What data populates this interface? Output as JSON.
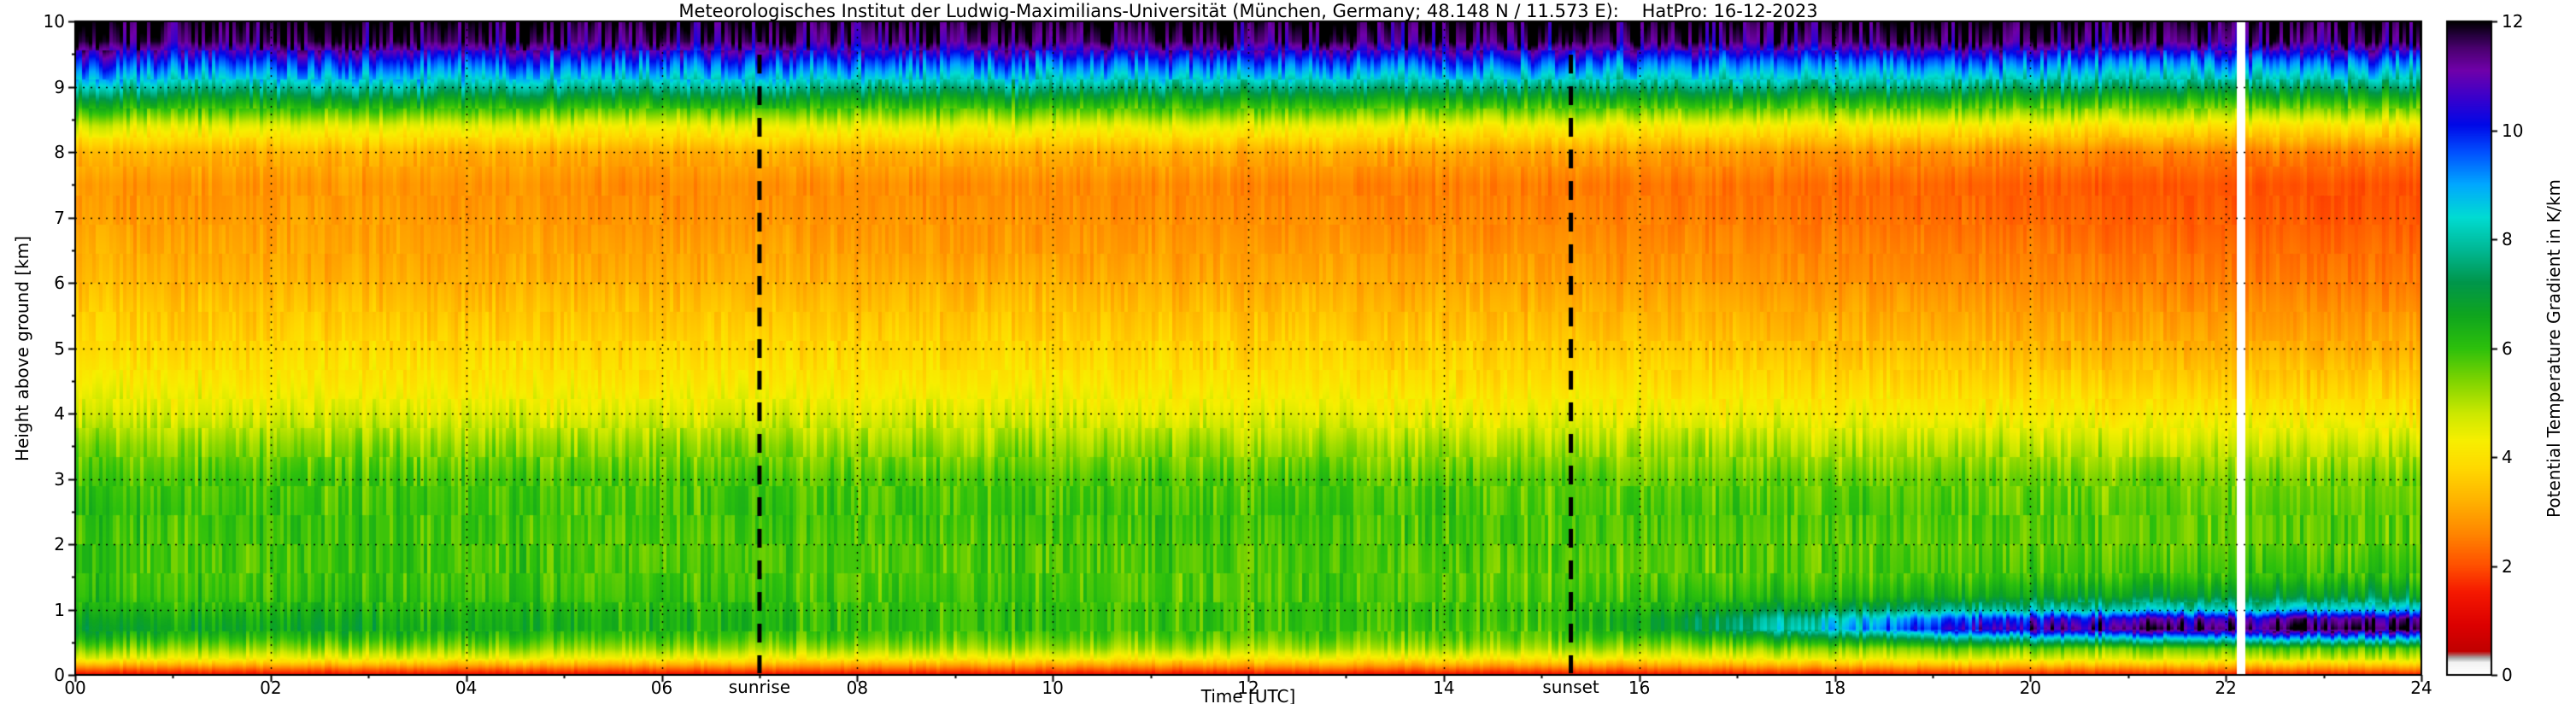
{
  "figure": {
    "title": "Meteorologisches Institut der Ludwig-Maximilians-Universität (München, Germany; 48.148 N / 11.573 E):    HatPro: 16-12-2023"
  },
  "axes": {
    "x_label": "Time [UTC]",
    "y_label": "Height above ground [km]",
    "x_tick_labels": [
      "00",
      "02",
      "04",
      "06",
      "08",
      "10",
      "12",
      "14",
      "16",
      "18",
      "20",
      "22",
      "24"
    ],
    "x_tick_values": [
      0,
      2,
      4,
      6,
      8,
      10,
      12,
      14,
      16,
      18,
      20,
      22,
      24
    ],
    "y_tick_labels": [
      "0",
      "1",
      "2",
      "3",
      "4",
      "5",
      "6",
      "7",
      "8",
      "9",
      "10"
    ],
    "y_tick_values": [
      0,
      1,
      2,
      3,
      4,
      5,
      6,
      7,
      8,
      9,
      10
    ],
    "x_range": [
      0,
      24
    ],
    "y_range": [
      0,
      10
    ],
    "grid": "dotted-black"
  },
  "colorbar": {
    "label": "Potential Temperature Gradient in K/km",
    "tick_labels": [
      "0",
      "2",
      "4",
      "6",
      "8",
      "10",
      "12"
    ],
    "tick_values": [
      0,
      2,
      4,
      6,
      8,
      10,
      12
    ],
    "range": [
      0,
      12
    ],
    "colormap": [
      [
        0.0,
        "#ffffff"
      ],
      [
        0.22,
        "#f2f2f2"
      ],
      [
        0.3,
        "#a6a6a6"
      ],
      [
        0.42,
        "#c00000"
      ],
      [
        0.9,
        "#dc0000"
      ],
      [
        1.5,
        "#f51800"
      ],
      [
        2.0,
        "#ff5000"
      ],
      [
        2.6,
        "#ff8700"
      ],
      [
        3.2,
        "#ffb300"
      ],
      [
        3.8,
        "#ffd900"
      ],
      [
        4.3,
        "#f7ef00"
      ],
      [
        4.8,
        "#cbe800"
      ],
      [
        5.4,
        "#7ed400"
      ],
      [
        6.0,
        "#2cc00c"
      ],
      [
        6.6,
        "#0fa51e"
      ],
      [
        7.2,
        "#00964b"
      ],
      [
        7.8,
        "#00b894"
      ],
      [
        8.4,
        "#00dcd2"
      ],
      [
        9.0,
        "#00a8ff"
      ],
      [
        9.6,
        "#004fff"
      ],
      [
        10.1,
        "#0008e8"
      ],
      [
        10.6,
        "#3a00cc"
      ],
      [
        11.1,
        "#7000aa"
      ],
      [
        11.5,
        "#4b0070"
      ],
      [
        11.75,
        "#24003c"
      ],
      [
        12.0,
        "#000000"
      ]
    ]
  },
  "annotations": {
    "sunrise_label": "sunrise",
    "sunrise_time_utc": 7.0,
    "sunset_label": "sunset",
    "sunset_time_utc": 15.3,
    "line_style": "black-dashed-vertical"
  },
  "chart_data": {
    "type": "heatmap",
    "title": "HatPro potential temperature gradient time-height section, 16-12-2023",
    "x_name": "Time [UTC]",
    "y_name": "Height above ground [km]",
    "value_name": "Potential Temperature Gradient in K/km",
    "x_range": [
      0,
      24
    ],
    "y_range": [
      0,
      10
    ],
    "value_range": [
      0,
      12
    ],
    "data_gap_time_utc": [
      22.12,
      22.2
    ],
    "y_heights_km": [
      0,
      0.08,
      0.15,
      0.25,
      0.4,
      0.55,
      0.7,
      0.85,
      1.0,
      1.2,
      1.5,
      2.0,
      2.5,
      3.0,
      3.5,
      4.0,
      4.5,
      5.0,
      5.5,
      6.0,
      6.5,
      7.0,
      7.5,
      8.0,
      8.4,
      8.8,
      9.1,
      9.4,
      9.7,
      10.0
    ],
    "x_profile_times": [
      0,
      3,
      6,
      7.5,
      9,
      12,
      15,
      16.5,
      18,
      19.5,
      21,
      23,
      24
    ],
    "profiles_K_per_km": [
      [
        1.3,
        2.2,
        3.2,
        4.5,
        5.4,
        6.2,
        6.8,
        6.6,
        6.3,
        6.0,
        5.9,
        5.9,
        6.0,
        5.8,
        5.4,
        4.7,
        4.2,
        3.8,
        3.6,
        3.3,
        3.1,
        2.9,
        2.8,
        3.3,
        4.6,
        6.8,
        8.6,
        10.0,
        11.6,
        12.0
      ],
      [
        1.3,
        2.2,
        3.2,
        4.4,
        5.3,
        6.0,
        6.5,
        6.4,
        6.2,
        6.0,
        5.9,
        5.9,
        5.9,
        5.8,
        5.3,
        4.6,
        4.1,
        3.8,
        3.5,
        3.2,
        3.0,
        2.9,
        2.8,
        3.2,
        4.5,
        6.7,
        8.5,
        9.9,
        11.6,
        12.0
      ],
      [
        1.3,
        2.2,
        3.2,
        4.4,
        5.3,
        5.9,
        6.3,
        6.3,
        6.2,
        6.0,
        5.9,
        5.8,
        5.9,
        5.8,
        5.3,
        4.6,
        4.1,
        3.8,
        3.5,
        3.2,
        3.0,
        2.8,
        2.7,
        3.1,
        4.4,
        6.6,
        8.4,
        9.8,
        11.5,
        12.0
      ],
      [
        1.3,
        2.2,
        3.1,
        4.3,
        5.2,
        5.8,
        6.1,
        6.1,
        6.0,
        5.9,
        5.8,
        5.8,
        5.9,
        5.8,
        5.3,
        4.6,
        4.1,
        3.8,
        3.5,
        3.2,
        3.0,
        2.8,
        2.7,
        3.2,
        4.5,
        6.6,
        8.4,
        9.8,
        11.5,
        12.0
      ],
      [
        1.3,
        2.2,
        3.1,
        4.3,
        5.2,
        5.7,
        6.0,
        6.0,
        6.0,
        5.9,
        5.8,
        5.8,
        5.9,
        5.8,
        5.2,
        4.6,
        4.1,
        3.8,
        3.5,
        3.2,
        2.9,
        2.8,
        2.7,
        3.2,
        4.5,
        6.5,
        8.3,
        9.7,
        11.5,
        12.0
      ],
      [
        1.3,
        2.2,
        3.1,
        4.2,
        5.1,
        5.6,
        5.9,
        5.9,
        5.9,
        5.8,
        5.8,
        5.8,
        5.9,
        5.7,
        5.2,
        4.5,
        4.0,
        3.7,
        3.4,
        3.1,
        2.9,
        2.7,
        2.6,
        3.1,
        4.4,
        6.5,
        8.3,
        9.7,
        11.5,
        12.0
      ],
      [
        1.3,
        2.2,
        3.1,
        4.2,
        5.1,
        5.6,
        5.8,
        5.9,
        5.9,
        5.8,
        5.7,
        5.8,
        5.8,
        5.7,
        5.1,
        4.4,
        3.9,
        3.6,
        3.3,
        3.0,
        2.8,
        2.6,
        2.5,
        3.0,
        4.3,
        6.4,
        8.2,
        9.7,
        11.5,
        12.0
      ],
      [
        1.4,
        2.3,
        3.2,
        4.3,
        5.2,
        6.0,
        6.9,
        6.9,
        6.4,
        6.0,
        5.7,
        5.7,
        5.8,
        5.6,
        5.1,
        4.4,
        3.9,
        3.5,
        3.2,
        2.9,
        2.7,
        2.5,
        2.4,
        2.9,
        4.2,
        6.4,
        8.2,
        9.6,
        11.5,
        12.0
      ],
      [
        1.4,
        2.4,
        3.4,
        4.5,
        5.4,
        6.8,
        8.6,
        8.2,
        7.0,
        6.2,
        5.8,
        5.7,
        5.8,
        5.6,
        5.0,
        4.3,
        3.8,
        3.4,
        3.1,
        2.8,
        2.6,
        2.4,
        2.3,
        2.8,
        4.2,
        6.3,
        8.2,
        9.6,
        11.5,
        12.0
      ],
      [
        1.5,
        2.5,
        3.5,
        4.6,
        5.6,
        7.8,
        10.6,
        9.8,
        7.8,
        6.5,
        5.9,
        5.7,
        5.8,
        5.6,
        5.0,
        4.2,
        3.7,
        3.3,
        3.0,
        2.7,
        2.5,
        2.3,
        2.2,
        2.7,
        4.1,
        6.3,
        8.1,
        9.6,
        11.5,
        12.0
      ],
      [
        1.5,
        2.5,
        3.5,
        4.7,
        5.7,
        8.6,
        11.6,
        10.8,
        8.3,
        6.8,
        6.0,
        5.7,
        5.7,
        5.5,
        4.9,
        4.2,
        3.6,
        3.2,
        2.9,
        2.6,
        2.4,
        2.2,
        2.1,
        2.6,
        4.1,
        6.2,
        8.1,
        9.5,
        11.5,
        12.0
      ],
      [
        1.5,
        2.6,
        3.6,
        4.8,
        5.8,
        8.9,
        11.8,
        11.2,
        8.6,
        7.0,
        6.1,
        5.7,
        5.7,
        5.5,
        4.9,
        4.1,
        3.6,
        3.1,
        2.8,
        2.5,
        2.3,
        2.1,
        2.0,
        2.5,
        4.0,
        6.2,
        8.0,
        9.5,
        11.5,
        12.0
      ],
      [
        1.5,
        2.6,
        3.6,
        4.8,
        5.8,
        8.9,
        11.8,
        11.2,
        8.6,
        7.0,
        6.1,
        5.7,
        5.7,
        5.5,
        4.9,
        4.1,
        3.6,
        3.1,
        2.8,
        2.5,
        2.3,
        2.1,
        2.0,
        2.5,
        4.0,
        6.2,
        8.0,
        9.5,
        11.5,
        12.0
      ]
    ]
  }
}
